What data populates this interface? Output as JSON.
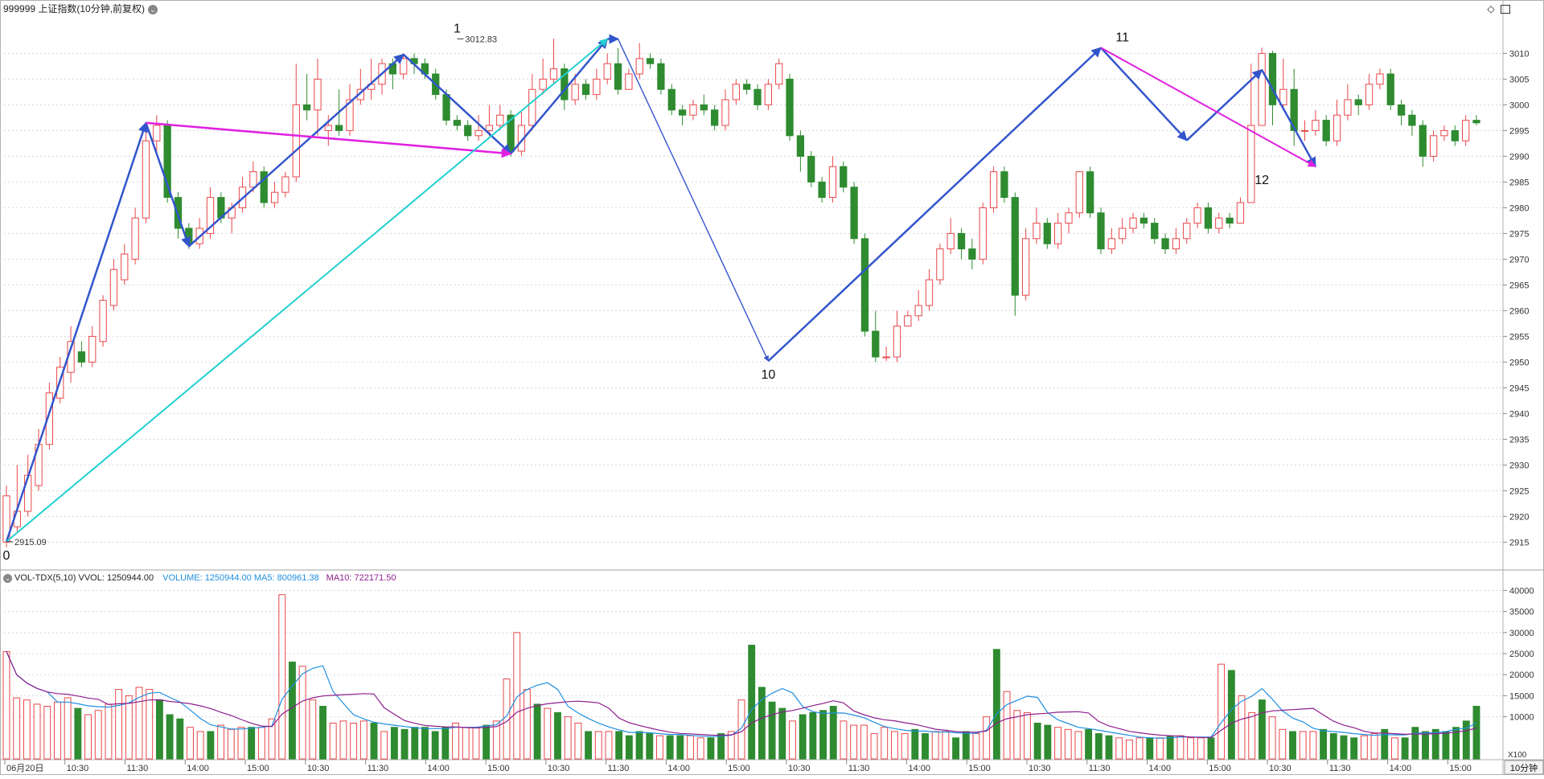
{
  "header": {
    "symbol_title": "999999 上证指数(10分钟,前复权)",
    "settings_icon": "chevron-down-icon",
    "right_icons": [
      "diamond-icon",
      "window-icon"
    ]
  },
  "volume_header": {
    "indicator": "VOL-TDX(5,10)",
    "vvol": "VVOL: 1250944.00",
    "volume": "VOLUME: 1250944.00",
    "ma5": "MA5: 800961.38",
    "ma10": "MA10: 722171.50"
  },
  "colors": {
    "up": "#e8474b",
    "down": "#2e8b30",
    "ma5": "#1f8fe0",
    "ma10": "#8e1f8e",
    "zig_blue": "#3355cc",
    "zig_magenta": "#e020e0",
    "zig_cyan": "#22d0d0",
    "grid": "#d8d8d8"
  },
  "x_axis": {
    "labels": [
      "06月20日",
      "10:30",
      "11:30",
      "14:00",
      "15:00",
      "10:30",
      "11:30",
      "14:00",
      "15:00",
      "10:30",
      "11:30",
      "14:00",
      "15:00",
      "10:30",
      "11:30",
      "14:00",
      "15:00",
      "10:30",
      "11:30",
      "14:00",
      "15:00",
      "10:30",
      "11:30",
      "14:00",
      "15:00"
    ],
    "period_button": "10分钟"
  },
  "chart_data": [
    {
      "type": "candlestick",
      "title": "999999 上证指数(10分钟,前复权)",
      "ylim": [
        2911,
        3016
      ],
      "y_ticks": [
        3010,
        3005,
        3000,
        2995,
        2990,
        2985,
        2980,
        2975,
        2970,
        2965,
        2960,
        2955,
        2950,
        2945,
        2940,
        2935,
        2930,
        2925,
        2920,
        2915
      ],
      "annotations": [
        {
          "label": "2915.09",
          "value": 2915.09,
          "index": 0
        },
        {
          "label": "3012.83",
          "value": 3012.83,
          "index": 42
        }
      ],
      "wave_labels": [
        {
          "label": "0",
          "index": 0,
          "value": 2915.1
        },
        {
          "label": "1",
          "index": 42,
          "value": 3012.8
        },
        {
          "label": "10",
          "index": 71,
          "value": 2950.2
        },
        {
          "label": "11",
          "index": 104,
          "value": 3011.1
        },
        {
          "label": "12",
          "index": 117,
          "value": 2988
        }
      ],
      "candles": [
        [
          2915,
          2924,
          2926,
          2914
        ],
        [
          2918,
          2921,
          2930,
          2917
        ],
        [
          2921,
          2928,
          2932,
          2920
        ],
        [
          2926,
          2934,
          2937,
          2925
        ],
        [
          2934,
          2944,
          2946,
          2933
        ],
        [
          2943,
          2949,
          2951,
          2942
        ],
        [
          2948,
          2954,
          2957,
          2946
        ],
        [
          2952,
          2950,
          2954,
          2949
        ],
        [
          2950,
          2955,
          2957,
          2949
        ],
        [
          2954,
          2962,
          2963,
          2953
        ],
        [
          2961,
          2968,
          2970,
          2960
        ],
        [
          2966,
          2971,
          2973,
          2965
        ],
        [
          2970,
          2978,
          2980,
          2969
        ],
        [
          2978,
          2993,
          2995,
          2977
        ],
        [
          2993,
          2996,
          2998,
          2991
        ],
        [
          2996,
          2982,
          2997,
          2981
        ],
        [
          2982,
          2976,
          2983,
          2974
        ],
        [
          2976,
          2973,
          2977,
          2972
        ],
        [
          2973,
          2976,
          2978,
          2972
        ],
        [
          2975,
          2982,
          2984,
          2974
        ],
        [
          2982,
          2978,
          2983,
          2977
        ],
        [
          2978,
          2980,
          2981,
          2975
        ],
        [
          2980,
          2984,
          2986,
          2979
        ],
        [
          2984,
          2987,
          2989,
          2983
        ],
        [
          2987,
          2981,
          2988,
          2980
        ],
        [
          2981,
          2983,
          2985,
          2980
        ],
        [
          2983,
          2986,
          2987,
          2982
        ],
        [
          2986,
          3000,
          3008,
          2985
        ],
        [
          3000,
          2999,
          3006,
          2997
        ],
        [
          2999,
          3005,
          3009,
          2994
        ],
        [
          2995,
          2996,
          2998,
          2992
        ],
        [
          2996,
          2995,
          3003,
          2994
        ],
        [
          2995,
          3001,
          3004,
          2994
        ],
        [
          3001,
          3003,
          3007,
          3000
        ],
        [
          3003,
          3004,
          3009,
          3001
        ],
        [
          3004,
          3008,
          3009,
          3002
        ],
        [
          3008,
          3006,
          3009,
          3003
        ],
        [
          3006,
          3009,
          3010,
          3005
        ],
        [
          3009,
          3008,
          3010,
          3006
        ],
        [
          3008,
          3006,
          3009,
          3005
        ],
        [
          3006,
          3002,
          3007,
          3001
        ],
        [
          3002,
          2997,
          3003,
          2996
        ],
        [
          2997,
          2996,
          2998,
          2995
        ],
        [
          2996,
          2994,
          2997,
          2993
        ],
        [
          2994,
          2995,
          2998,
          2993
        ],
        [
          2995,
          2996,
          3000,
          2994
        ],
        [
          2996,
          2998,
          3000,
          2995
        ],
        [
          2998,
          2991,
          2999,
          2990
        ],
        [
          2991,
          2996,
          2999,
          2990
        ],
        [
          2996,
          3003,
          3006,
          2995
        ],
        [
          3003,
          3005,
          3009,
          3002
        ],
        [
          3005,
          3007,
          3012.83,
          3004
        ],
        [
          3007,
          3001,
          3008,
          2999
        ],
        [
          3001,
          3004,
          3006,
          3000
        ],
        [
          3004,
          3002,
          3005,
          3001
        ],
        [
          3002,
          3005,
          3007,
          3001
        ],
        [
          3005,
          3008,
          3010,
          3004
        ],
        [
          3008,
          3003,
          3011,
          3002
        ],
        [
          3003,
          3006,
          3007,
          3003
        ],
        [
          3006,
          3009,
          3012,
          3005
        ],
        [
          3009,
          3008,
          3010,
          3007
        ],
        [
          3008,
          3003,
          3009,
          3002
        ],
        [
          3003,
          2999,
          3004,
          2998
        ],
        [
          2999,
          2998,
          3000,
          2996
        ],
        [
          2998,
          3000,
          3001,
          2997
        ],
        [
          3000,
          2999,
          3002,
          2998
        ],
        [
          2999,
          2996,
          3000,
          2995
        ],
        [
          2996,
          3001,
          3003,
          2995
        ],
        [
          3001,
          3004,
          3005,
          3000
        ],
        [
          3004,
          3003,
          3005,
          3002
        ],
        [
          3003,
          3000,
          3004,
          2999
        ],
        [
          3000,
          3004,
          3005,
          2999
        ],
        [
          3004,
          3008,
          3009,
          3003
        ],
        [
          3005,
          2994,
          3006,
          2993
        ],
        [
          2994,
          2990,
          2995,
          2987
        ],
        [
          2990,
          2985,
          2991,
          2984
        ],
        [
          2985,
          2982,
          2986,
          2981
        ],
        [
          2982,
          2988,
          2990,
          2981
        ],
        [
          2988,
          2984,
          2989,
          2983
        ],
        [
          2984,
          2974,
          2985,
          2973
        ],
        [
          2974,
          2956,
          2975,
          2955
        ],
        [
          2956,
          2951,
          2960,
          2950
        ],
        [
          2951,
          2951,
          2953,
          2950.2
        ],
        [
          2951,
          2957,
          2960,
          2950
        ],
        [
          2957,
          2959,
          2960,
          2957
        ],
        [
          2959,
          2961,
          2964,
          2958
        ],
        [
          2961,
          2966,
          2968,
          2960
        ],
        [
          2966,
          2972,
          2973,
          2965
        ],
        [
          2972,
          2975,
          2978,
          2971
        ],
        [
          2975,
          2972,
          2976,
          2970
        ],
        [
          2972,
          2970,
          2974,
          2968
        ],
        [
          2970,
          2980,
          2981,
          2969
        ],
        [
          2980,
          2987,
          2988,
          2979
        ],
        [
          2987,
          2982,
          2988,
          2981
        ],
        [
          2982,
          2963,
          2983,
          2959
        ],
        [
          2963,
          2974,
          2976,
          2962
        ],
        [
          2974,
          2977,
          2980,
          2973
        ],
        [
          2977,
          2973,
          2978,
          2972
        ],
        [
          2973,
          2977,
          2979,
          2972
        ],
        [
          2977,
          2979,
          2980,
          2975
        ],
        [
          2979,
          2987,
          2987,
          2978
        ],
        [
          2987,
          2979,
          2988,
          2978
        ],
        [
          2979,
          2972,
          2980,
          2971
        ],
        [
          2972,
          2974,
          2976,
          2971
        ],
        [
          2974,
          2976,
          2978,
          2973
        ],
        [
          2976,
          2978,
          2979,
          2975
        ],
        [
          2978,
          2977,
          2979,
          2976
        ],
        [
          2977,
          2974,
          2978,
          2973
        ],
        [
          2974,
          2972,
          2975,
          2971
        ],
        [
          2972,
          2974,
          2976,
          2971
        ],
        [
          2974,
          2977,
          2978,
          2973
        ],
        [
          2977,
          2980,
          2981,
          2976
        ],
        [
          2980,
          2976,
          2981,
          2975
        ],
        [
          2976,
          2978,
          2979,
          2975
        ],
        [
          2978,
          2977,
          2979,
          2976
        ],
        [
          2977,
          2981,
          2982,
          2981
        ],
        [
          2981,
          2996,
          3008,
          2994
        ],
        [
          2996,
          3010,
          3011.1,
          3004
        ],
        [
          3010,
          3000,
          3010.5,
          2996
        ],
        [
          3000,
          3003,
          3009,
          2999
        ],
        [
          3003,
          2995,
          3007,
          2992
        ],
        [
          2995,
          2995,
          2997,
          2993
        ],
        [
          2995,
          2997,
          2999,
          2994
        ],
        [
          2997,
          2993,
          2998,
          2992
        ],
        [
          2993,
          2998,
          3001,
          2992
        ],
        [
          2998,
          3001,
          3004,
          2997
        ],
        [
          3001,
          3000,
          3002,
          2998
        ],
        [
          3000,
          3004,
          3006,
          2999
        ],
        [
          3004,
          3006,
          3007,
          3003
        ],
        [
          3006,
          3000,
          3007,
          2999
        ],
        [
          3000,
          2998,
          3001,
          2996
        ],
        [
          2998,
          2996,
          2999,
          2994
        ],
        [
          2996,
          2990,
          2997,
          2988
        ],
        [
          2990,
          2994,
          2995,
          2989
        ],
        [
          2994,
          2995,
          2996,
          2993
        ],
        [
          2995,
          2993,
          2996,
          2992
        ],
        [
          2993,
          2997,
          2998,
          2992
        ],
        [
          2997,
          2996.5,
          2998,
          2996
        ]
      ],
      "zigzag_lines": [
        {
          "color": "#3355cc",
          "width": 2.5,
          "points": [
            [
              0,
              2915.1
            ],
            [
              13,
              2996.5
            ],
            [
              17,
              2972.5
            ],
            [
              37,
              3009.8
            ],
            [
              47,
              2990.5
            ],
            [
              56,
              3012.8
            ],
            [
              57,
              3012.8
            ],
            [
              71,
              2950.2
            ],
            [
              102,
              3011.1
            ],
            [
              110,
              2993.1
            ],
            [
              117,
              3006.8
            ],
            [
              122,
              2988
            ]
          ]
        },
        {
          "color": "#e020e0",
          "width": 2.5,
          "points": [
            [
              13,
              2996.5
            ],
            [
              47,
              2990.5
            ]
          ]
        },
        {
          "color": "#e020e0",
          "width": 2,
          "points": [
            [
              102,
              3011.1
            ],
            [
              122,
              2988
            ]
          ]
        },
        {
          "color": "#22d0d0",
          "width": 2,
          "points": [
            [
              0,
              2915.1
            ],
            [
              56,
              3012.8
            ]
          ]
        }
      ]
    },
    {
      "type": "bar",
      "title": "VOL-TDX(5,10)",
      "ylim": [
        0,
        42000
      ],
      "y_ticks": [
        40000,
        35000,
        30000,
        25000,
        20000,
        15000,
        10000
      ],
      "y_unit": "X100",
      "volumes": [
        25500,
        14500,
        14000,
        13000,
        12500,
        13500,
        14500,
        12000,
        10500,
        11500,
        13000,
        16500,
        15000,
        17000,
        16500,
        14000,
        10500,
        9500,
        7500,
        6500,
        6500,
        8000,
        7000,
        7500,
        7500,
        7500,
        9500,
        39000,
        23000,
        22000,
        14000,
        12500,
        8500,
        9000,
        8500,
        9000,
        8500,
        6500,
        7500,
        7000,
        7500,
        7500,
        6500,
        7500,
        8500,
        7500,
        7500,
        8000,
        9000,
        19000,
        30000,
        16500,
        13000,
        12000,
        11000,
        10000,
        8500,
        6500,
        6500,
        6500,
        6500,
        5500,
        6500,
        6000,
        5500,
        5500,
        5500,
        5500,
        5000,
        5000,
        6000,
        6500,
        14000,
        27000,
        17000,
        13500,
        12000,
        9000,
        10500,
        11000,
        11500,
        12500,
        9000,
        8000,
        8000,
        6000,
        7500,
        6500,
        6000,
        7000,
        6000,
        6500,
        6500,
        5000,
        6500,
        6000,
        10000,
        26000,
        16000,
        11500,
        11000,
        8500,
        8000,
        7500,
        7000,
        6500,
        7000,
        6000,
        5500,
        5000,
        4500,
        5000,
        5000,
        5000,
        5500,
        5500,
        5000,
        5000,
        5000,
        22500,
        21000,
        15000,
        11000,
        14000,
        10000,
        7000,
        6500,
        6500,
        6500,
        7000,
        6000,
        5500,
        5000,
        5500,
        6000,
        7000,
        5000,
        5000,
        7500,
        6500,
        7000,
        6500,
        7500,
        9000,
        12500
      ]
    }
  ]
}
